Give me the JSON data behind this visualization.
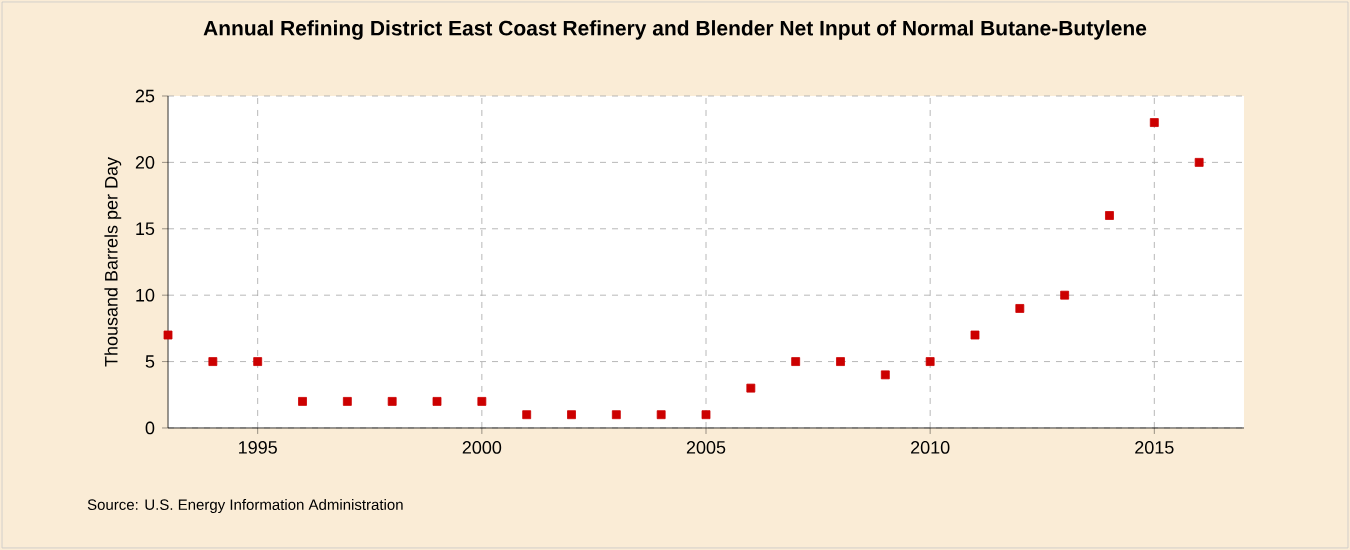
{
  "chart_data": {
    "type": "scatter",
    "title": "Annual Refining District East Coast Refinery and Blender Net Input of Normal Butane-Butylene",
    "ylabel": "Thousand Barrels per Day",
    "annotations": [
      "Source: U.S. Energy Information Administration"
    ],
    "x": [
      1993,
      1994,
      1995,
      1996,
      1997,
      1998,
      1999,
      2000,
      2001,
      2002,
      2003,
      2004,
      2005,
      2006,
      2007,
      2008,
      2009,
      2010,
      2011,
      2012,
      2013,
      2014,
      2015,
      2016
    ],
    "series": [
      {
        "color": "#cc0000",
        "values": [
          7,
          5,
          5,
          2,
          2,
          2,
          2,
          2,
          1,
          1,
          1,
          1,
          1,
          3,
          5,
          5,
          4,
          5,
          7,
          9,
          10,
          16,
          23,
          20
        ]
      }
    ],
    "xlim": [
      1993,
      2017
    ],
    "xticks": [
      1995,
      2000,
      2005,
      2010,
      2015
    ],
    "ylim": [
      0,
      25
    ],
    "yticks": [
      0,
      5,
      10,
      15,
      20,
      25
    ],
    "grid": true,
    "marker": "square"
  }
}
